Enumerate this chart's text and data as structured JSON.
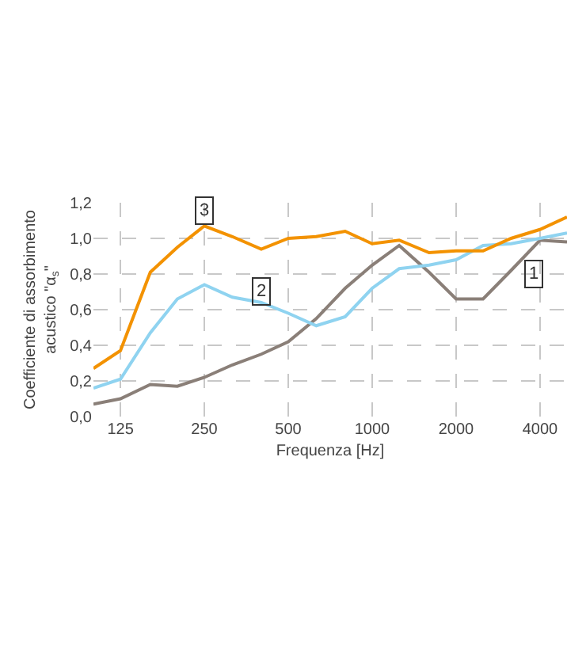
{
  "chart_data": {
    "type": "line",
    "xlabel": "Frequenza [Hz]",
    "ylabel": "Coefficiente di assorbimento\nacustico \"α$_{s}$\"",
    "x": [
      100,
      125,
      160,
      200,
      250,
      315,
      400,
      500,
      630,
      800,
      1000,
      1250,
      1600,
      2000,
      2500,
      3150,
      4000,
      5000
    ],
    "series": [
      {
        "color": "#8a7f78",
        "values": [
          0.07,
          0.1,
          0.18,
          0.17,
          0.22,
          0.29,
          0.35,
          0.42,
          0.55,
          0.72,
          0.85,
          0.96,
          0.81,
          0.66,
          0.66,
          0.82,
          0.99,
          0.98
        ]
      },
      {
        "color": "#8fd3f0",
        "values": [
          0.16,
          0.21,
          0.47,
          0.66,
          0.74,
          0.67,
          0.64,
          0.58,
          0.51,
          0.56,
          0.72,
          0.83,
          0.85,
          0.88,
          0.96,
          0.97,
          1.0,
          1.03
        ]
      },
      {
        "color": "#f39200",
        "values": [
          0.27,
          0.37,
          0.81,
          0.95,
          1.07,
          1.01,
          0.94,
          1.0,
          1.01,
          1.04,
          0.97,
          0.99,
          0.92,
          0.93,
          0.93,
          1.0,
          1.05,
          1.12
        ]
      }
    ],
    "annotations": [
      {
        "text": "1",
        "x": 3800,
        "y": 0.8
      },
      {
        "text": "2",
        "x": 400,
        "y": 0.7
      },
      {
        "text": "3",
        "x": 250,
        "y": 1.16
      }
    ],
    "log": "x",
    "xlim": [
      100,
      5000
    ],
    "xticks": [
      125,
      250,
      500,
      1000,
      2000,
      4000
    ],
    "ylim": [
      0,
      1.2
    ],
    "yticks": [
      {
        "value": 0,
        "label": "0,0"
      },
      {
        "value": 0.2,
        "label": "0,2"
      },
      {
        "value": 0.4,
        "label": "0,4"
      },
      {
        "value": 0.6,
        "label": "0,6"
      },
      {
        "value": 0.8,
        "label": "0,8"
      },
      {
        "value": 1,
        "label": "1,0"
      },
      {
        "value": 1.2,
        "label": "1,2"
      }
    ],
    "grid": true,
    "line_style": "solid",
    "marker": "none"
  }
}
